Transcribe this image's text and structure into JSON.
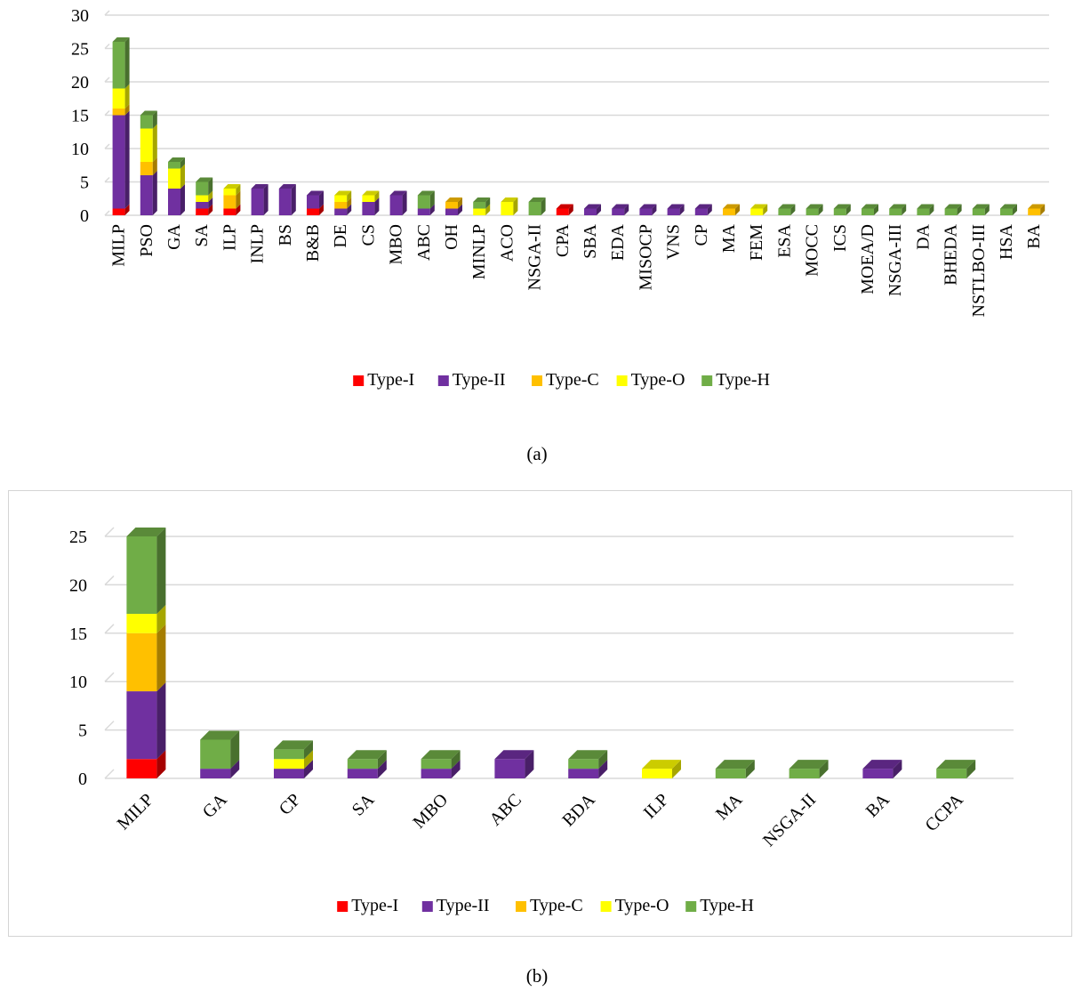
{
  "legend": {
    "type_i": "Type-I",
    "type_ii": "Type-II",
    "type_c": "Type-C",
    "type_o": "Type-O",
    "type_h": "Type-H"
  },
  "captions": {
    "a": "(a)",
    "b": "(b)"
  },
  "colors": {
    "Type-I": "#ff0000",
    "Type-II": "#7030a0",
    "Type-C": "#ffc000",
    "Type-O": "#ffff00",
    "Type-H": "#70ad47",
    "grid": "#d9d9d9"
  },
  "chart_data": [
    {
      "type": "bar",
      "stacked": true,
      "projection": "3d-column",
      "title": "",
      "xlabel": "",
      "ylabel": "",
      "ylim": [
        0,
        30
      ],
      "yticks": [
        0,
        5,
        10,
        15,
        20,
        25,
        30
      ],
      "grid": true,
      "legend_position": "bottom",
      "x_tick_rotation": "vertical",
      "categories": [
        "MILP",
        "PSO",
        "GA",
        "SA",
        "ILP",
        "INLP",
        "BS",
        "B&B",
        "DE",
        "CS",
        "MBO",
        "ABC",
        "OH",
        "MINLP",
        "ACO",
        "NSGA-II",
        "CPA",
        "SBA",
        "EDA",
        "MISOCP",
        "VNS",
        "CP",
        "MA",
        "FEM",
        "ESA",
        "MOCC",
        "ICS",
        "MOEA/D",
        "NSGA-III",
        "DA",
        "BHEDA",
        "NSTLBO-III",
        "HSA",
        "BA"
      ],
      "series": [
        {
          "name": "Type-I",
          "values": [
            1,
            0,
            0,
            1,
            1,
            0,
            0,
            1,
            0,
            0,
            0,
            0,
            0,
            0,
            0,
            0,
            1,
            0,
            0,
            0,
            0,
            0,
            0,
            0,
            0,
            0,
            0,
            0,
            0,
            0,
            0,
            0,
            0,
            0
          ]
        },
        {
          "name": "Type-II",
          "values": [
            14,
            6,
            4,
            1,
            0,
            4,
            4,
            2,
            1,
            2,
            3,
            1,
            1,
            0,
            0,
            0,
            0,
            1,
            1,
            1,
            1,
            1,
            0,
            0,
            0,
            0,
            0,
            0,
            0,
            0,
            0,
            0,
            0,
            0
          ]
        },
        {
          "name": "Type-C",
          "values": [
            1,
            2,
            0,
            0,
            2,
            0,
            0,
            0,
            1,
            0,
            0,
            0,
            1,
            0,
            0,
            0,
            0,
            0,
            0,
            0,
            0,
            0,
            1,
            0,
            0,
            0,
            0,
            0,
            0,
            0,
            0,
            0,
            0,
            1
          ]
        },
        {
          "name": "Type-O",
          "values": [
            3,
            5,
            3,
            1,
            1,
            0,
            0,
            0,
            1,
            1,
            0,
            0,
            0,
            1,
            2,
            0,
            0,
            0,
            0,
            0,
            0,
            0,
            0,
            1,
            0,
            0,
            0,
            0,
            0,
            0,
            0,
            0,
            0,
            0
          ]
        },
        {
          "name": "Type-H",
          "values": [
            7,
            2,
            1,
            2,
            0,
            0,
            0,
            0,
            0,
            0,
            0,
            2,
            0,
            1,
            0,
            2,
            0,
            0,
            0,
            0,
            0,
            0,
            0,
            0,
            1,
            1,
            1,
            1,
            1,
            1,
            1,
            1,
            1,
            0
          ]
        }
      ]
    },
    {
      "type": "bar",
      "stacked": true,
      "projection": "3d-column",
      "title": "",
      "xlabel": "",
      "ylabel": "",
      "ylim": [
        0,
        25
      ],
      "yticks": [
        0,
        5,
        10,
        15,
        20,
        25
      ],
      "grid": true,
      "legend_position": "bottom",
      "x_tick_rotation": "diagonal",
      "categories": [
        "MILP",
        "GA",
        "CP",
        "SA",
        "MBO",
        "ABC",
        "BDA",
        "ILP",
        "MA",
        "NSGA-II",
        "BA",
        "CCPA"
      ],
      "series": [
        {
          "name": "Type-I",
          "values": [
            2,
            0,
            0,
            0,
            0,
            0,
            0,
            0,
            0,
            0,
            0,
            0
          ]
        },
        {
          "name": "Type-II",
          "values": [
            7,
            1,
            1,
            1,
            1,
            2,
            1,
            0,
            0,
            0,
            1,
            0
          ]
        },
        {
          "name": "Type-C",
          "values": [
            6,
            0,
            0,
            0,
            0,
            0,
            0,
            0,
            0,
            0,
            0,
            0
          ]
        },
        {
          "name": "Type-O",
          "values": [
            2,
            0,
            1,
            0,
            0,
            0,
            0,
            1,
            0,
            0,
            0,
            0
          ]
        },
        {
          "name": "Type-H",
          "values": [
            8,
            3,
            1,
            1,
            1,
            0,
            1,
            0,
            1,
            1,
            0,
            1
          ]
        }
      ]
    }
  ]
}
